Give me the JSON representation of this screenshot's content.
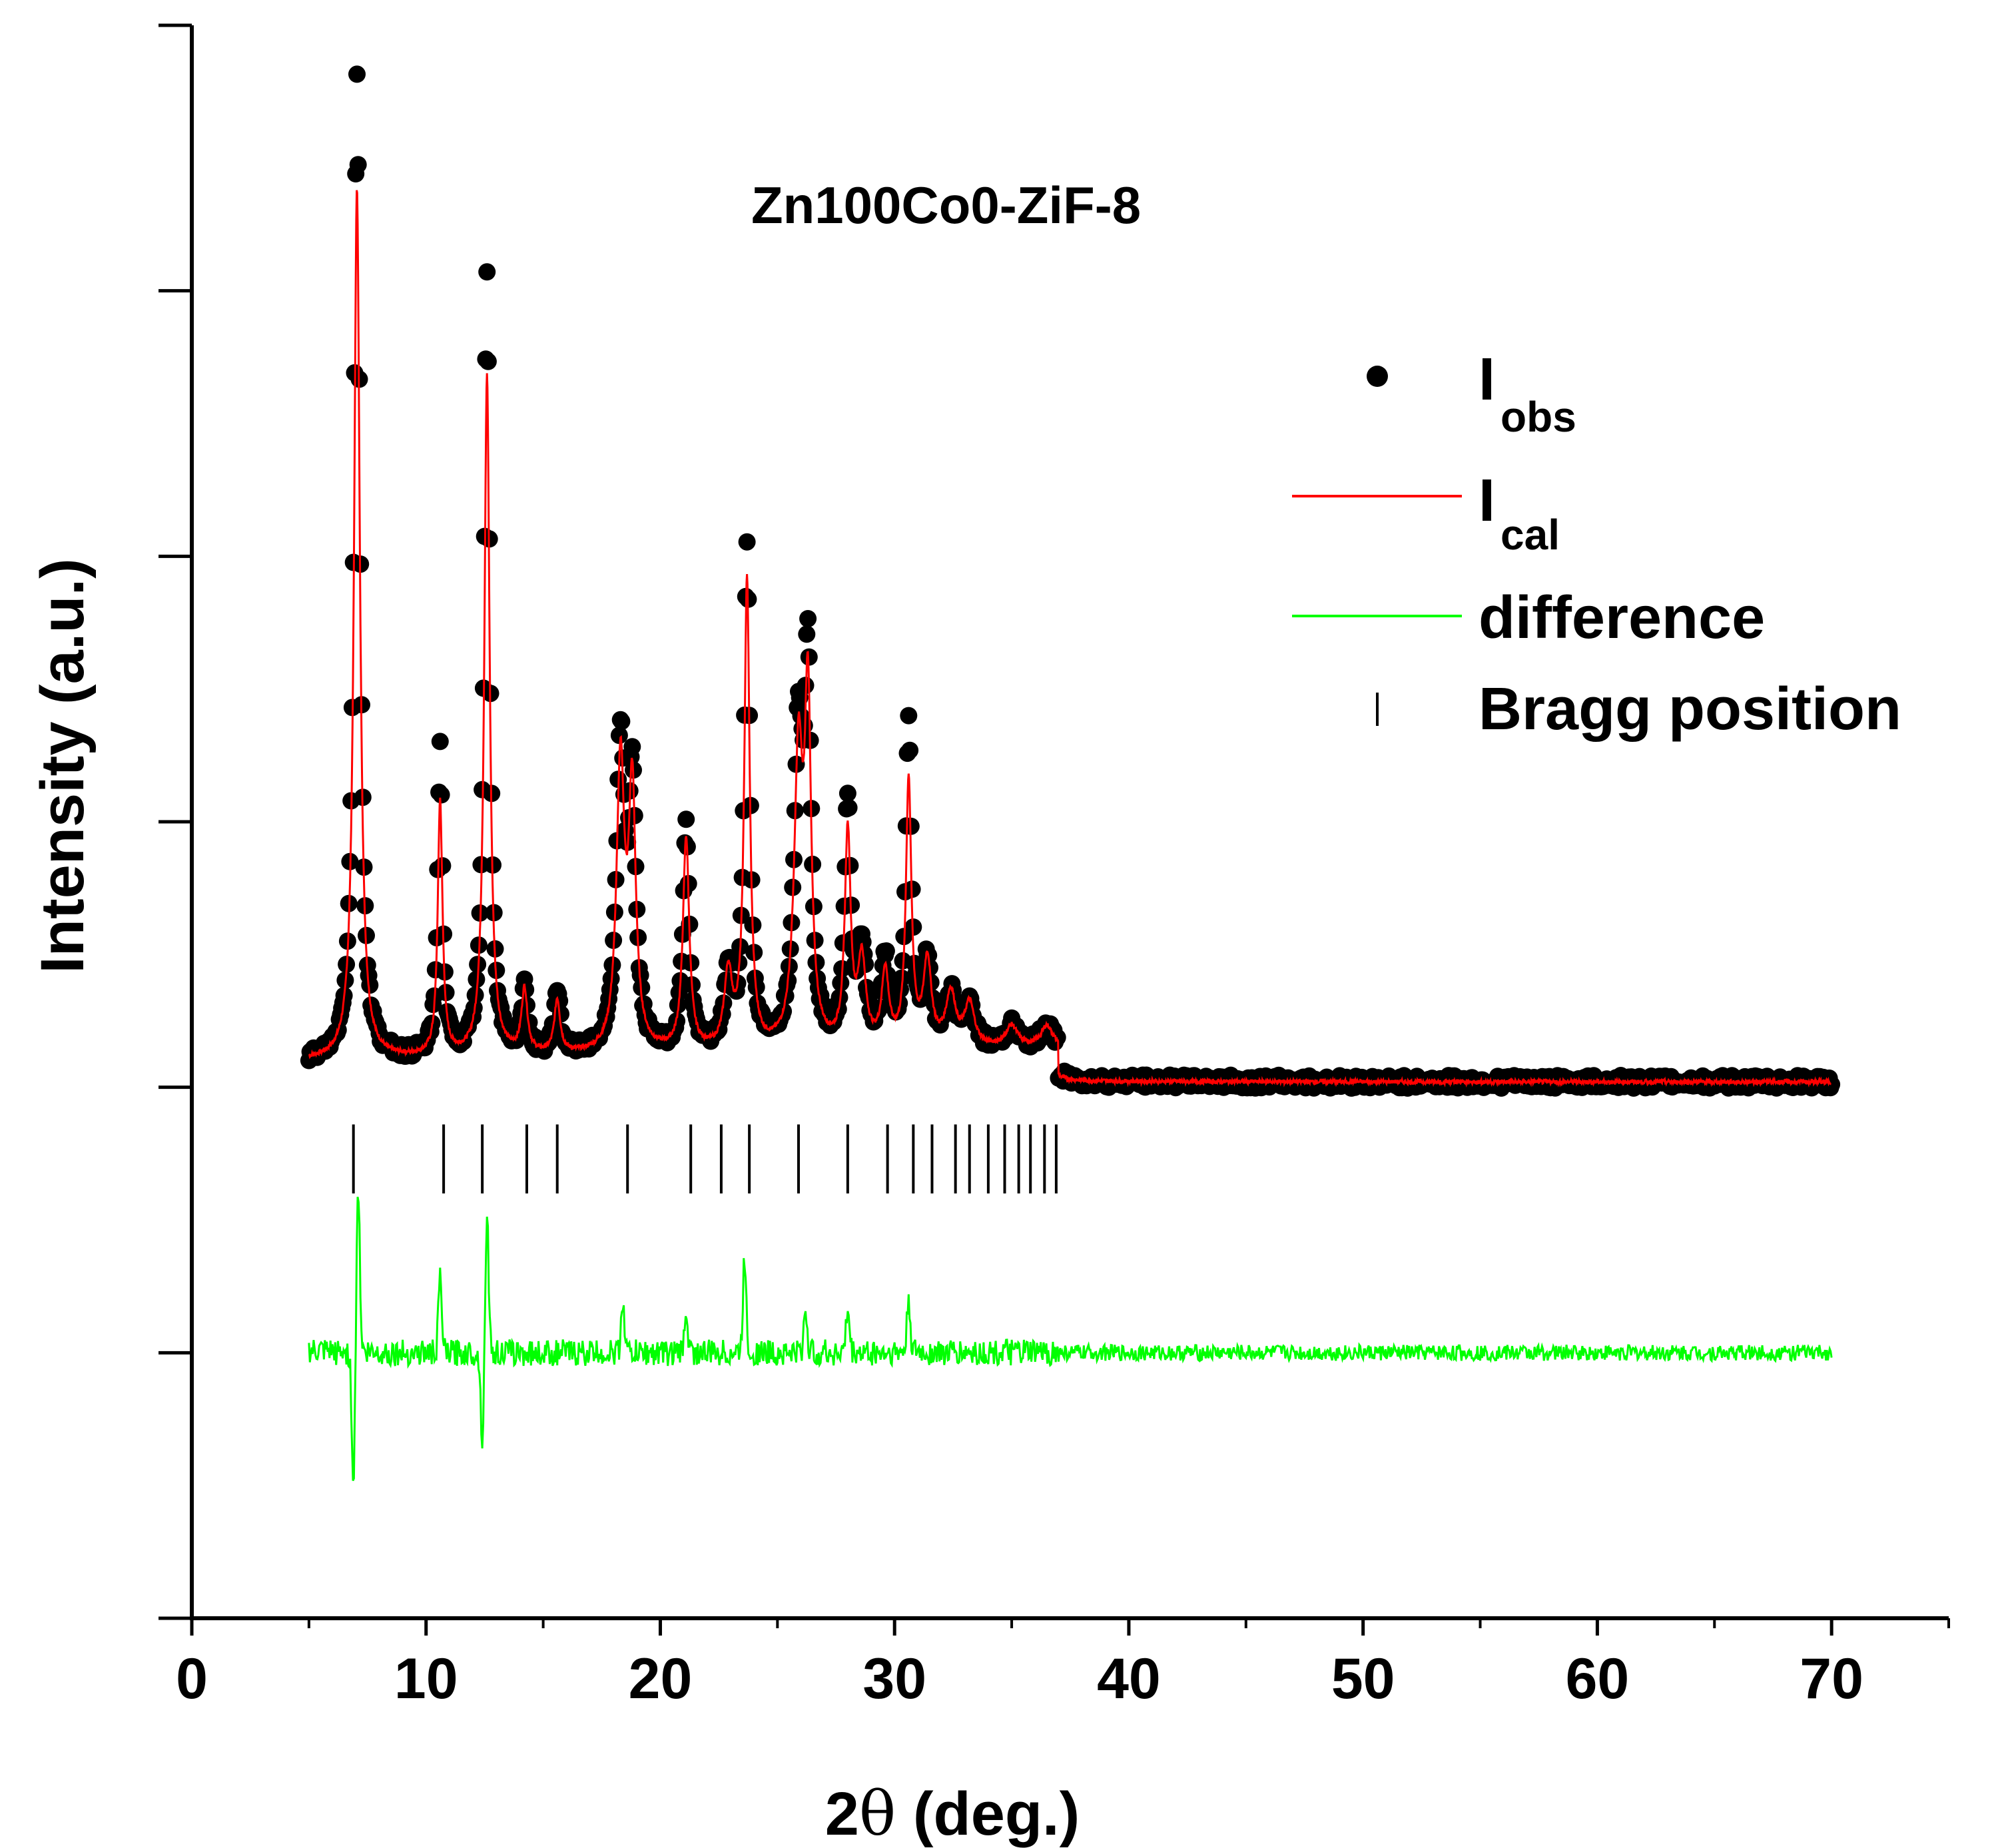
{
  "chart_data": {
    "type": "scatter",
    "title": "Zn100Co0-ZiF-8",
    "xlabel_main": "2",
    "xlabel_symbol": "θ",
    "xlabel_rest": " (deg.)",
    "ylabel": "Intensity (a.u.)",
    "xlim": [
      0,
      75
    ],
    "ylim": [
      -0.5,
      1.0
    ],
    "x_ticks": [
      0,
      10,
      20,
      30,
      40,
      50,
      60,
      70
    ],
    "x_tick_labels": [
      "0",
      "10",
      "20",
      "30",
      "40",
      "50",
      "60",
      "70"
    ],
    "y_ticks_unlabeled": [
      -0.5,
      -0.25,
      0.0,
      0.25,
      0.5,
      0.75,
      1.0
    ],
    "y_tick_labels_shown": false,
    "x_range": [
      5.0,
      70.0
    ],
    "baseline": 0.0,
    "peaks": [
      {
        "pos": 7.05,
        "obs": 0.94,
        "cal": 0.83,
        "w": 0.15
      },
      {
        "pos": 10.6,
        "obs": 0.3,
        "cal": 0.25,
        "w": 0.12
      },
      {
        "pos": 12.6,
        "obs": 0.75,
        "cal": 0.65,
        "w": 0.14
      },
      {
        "pos": 14.2,
        "obs": 0.07,
        "cal": 0.07,
        "w": 0.15
      },
      {
        "pos": 15.6,
        "obs": 0.07,
        "cal": 0.06,
        "w": 0.15
      },
      {
        "pos": 18.3,
        "obs": 0.3,
        "cal": 0.28,
        "w": 0.2
      },
      {
        "pos": 18.8,
        "obs": 0.26,
        "cal": 0.25,
        "w": 0.18
      },
      {
        "pos": 21.1,
        "obs": 0.22,
        "cal": 0.21,
        "w": 0.16
      },
      {
        "pos": 22.9,
        "obs": 0.08,
        "cal": 0.08,
        "w": 0.2
      },
      {
        "pos": 23.7,
        "obs": 0.48,
        "cal": 0.45,
        "w": 0.14
      },
      {
        "pos": 25.9,
        "obs": 0.3,
        "cal": 0.28,
        "w": 0.22
      },
      {
        "pos": 26.3,
        "obs": 0.35,
        "cal": 0.32,
        "w": 0.16
      },
      {
        "pos": 28.0,
        "obs": 0.24,
        "cal": 0.21,
        "w": 0.15
      },
      {
        "pos": 28.6,
        "obs": 0.1,
        "cal": 0.09,
        "w": 0.2
      },
      {
        "pos": 29.6,
        "obs": 0.09,
        "cal": 0.08,
        "w": 0.18
      },
      {
        "pos": 30.6,
        "obs": 0.31,
        "cal": 0.26,
        "w": 0.14
      },
      {
        "pos": 31.4,
        "obs": 0.09,
        "cal": 0.09,
        "w": 0.2
      },
      {
        "pos": 32.4,
        "obs": 0.06,
        "cal": 0.06,
        "w": 0.25
      },
      {
        "pos": 33.2,
        "obs": 0.05,
        "cal": 0.05,
        "w": 0.25
      },
      {
        "pos": 35.0,
        "obs": 0.03,
        "cal": 0.03,
        "w": 0.3
      },
      {
        "pos": 36.5,
        "obs": 0.03,
        "cal": 0.03,
        "w": 0.3
      }
    ],
    "bragg_positions": [
      6.9,
      10.75,
      12.4,
      14.3,
      15.6,
      18.6,
      21.3,
      22.6,
      23.8,
      25.9,
      28.0,
      29.7,
      30.8,
      31.6,
      32.6,
      33.2,
      34.0,
      34.7,
      35.3,
      35.8,
      36.4,
      36.9
    ],
    "bragg_y": [
      -0.035,
      -0.1
    ],
    "difference_offset": -0.25,
    "difference_spikes": [
      {
        "pos": 6.9,
        "amp": -0.12
      },
      {
        "pos": 7.1,
        "amp": 0.16
      },
      {
        "pos": 10.6,
        "amp": 0.07
      },
      {
        "pos": 12.4,
        "amp": -0.08
      },
      {
        "pos": 12.6,
        "amp": 0.13
      },
      {
        "pos": 18.4,
        "amp": 0.05
      },
      {
        "pos": 21.1,
        "amp": 0.04
      },
      {
        "pos": 23.6,
        "amp": 0.09
      },
      {
        "pos": 26.2,
        "amp": 0.04
      },
      {
        "pos": 28.0,
        "amp": 0.04
      },
      {
        "pos": 30.6,
        "amp": 0.05
      }
    ],
    "legend_position": "top-right",
    "legend": [
      {
        "label": "I",
        "sub": "obs",
        "kind": "marker",
        "color": "#000000"
      },
      {
        "label": "I",
        "sub": "cal",
        "kind": "line",
        "color": "#ff0000"
      },
      {
        "label": "difference",
        "sub": "",
        "kind": "line",
        "color": "#00ff00"
      },
      {
        "label": "Bragg position",
        "sub": "",
        "kind": "tick",
        "color": "#000000"
      }
    ],
    "colors": {
      "observed": "#000000",
      "calculated": "#ff0000",
      "difference": "#00ff00",
      "bragg": "#000000",
      "axis": "#000000"
    }
  }
}
